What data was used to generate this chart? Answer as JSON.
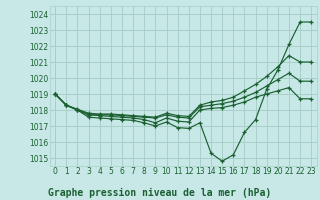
{
  "bg_color": "#c8e8e8",
  "grid_color": "#a8d0c8",
  "line_color": "#1a6030",
  "title": "Graphe pression niveau de la mer (hPa)",
  "xlim": [
    -0.5,
    23.5
  ],
  "ylim": [
    1014.5,
    1024.5
  ],
  "yticks": [
    1015,
    1016,
    1017,
    1018,
    1019,
    1020,
    1021,
    1022,
    1023,
    1024
  ],
  "xticks": [
    0,
    1,
    2,
    3,
    4,
    5,
    6,
    7,
    8,
    9,
    10,
    11,
    12,
    13,
    14,
    15,
    16,
    17,
    18,
    19,
    20,
    21,
    22,
    23
  ],
  "series": [
    [
      1019.0,
      1018.3,
      1018.0,
      1017.55,
      1017.5,
      1017.45,
      1017.4,
      1017.35,
      1017.2,
      1017.0,
      1017.25,
      1016.9,
      1016.85,
      1017.2,
      1015.3,
      1014.8,
      1015.2,
      1016.6,
      1017.4,
      1019.3,
      1020.5,
      1022.1,
      1023.5,
      1023.5
    ],
    [
      1019.0,
      1018.3,
      1018.0,
      1017.7,
      1017.65,
      1017.6,
      1017.55,
      1017.5,
      1017.4,
      1017.2,
      1017.5,
      1017.3,
      1017.25,
      1018.0,
      1018.1,
      1018.15,
      1018.3,
      1018.5,
      1018.8,
      1019.0,
      1019.2,
      1019.4,
      1018.7,
      1018.7
    ],
    [
      1019.0,
      1018.3,
      1018.0,
      1017.7,
      1017.7,
      1017.7,
      1017.65,
      1017.6,
      1017.55,
      1017.5,
      1017.7,
      1017.55,
      1017.5,
      1018.2,
      1018.3,
      1018.4,
      1018.55,
      1018.8,
      1019.1,
      1019.5,
      1019.9,
      1020.3,
      1019.8,
      1019.8
    ],
    [
      1019.0,
      1018.3,
      1018.05,
      1017.8,
      1017.75,
      1017.75,
      1017.7,
      1017.65,
      1017.6,
      1017.55,
      1017.8,
      1017.65,
      1017.6,
      1018.3,
      1018.5,
      1018.6,
      1018.8,
      1019.2,
      1019.6,
      1020.1,
      1020.7,
      1021.4,
      1021.0,
      1021.0
    ]
  ],
  "title_fontsize": 7.0,
  "tick_fontsize": 5.5
}
